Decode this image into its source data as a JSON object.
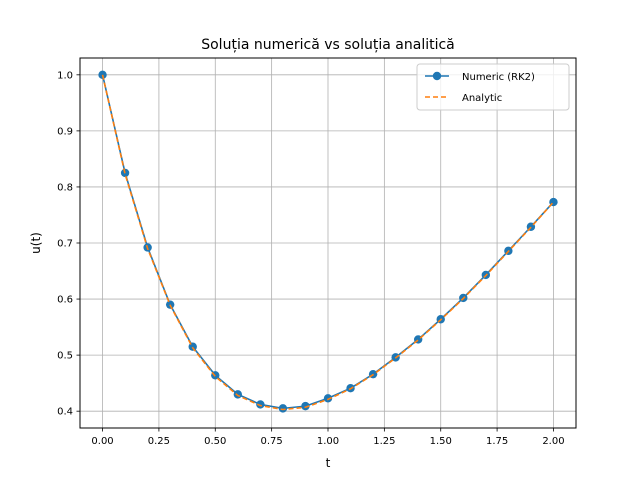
{
  "chart_data": {
    "type": "line",
    "title": "Soluția numerică vs soluția analitică",
    "xlabel": "t",
    "ylabel": "u(t)",
    "xlim": [
      -0.1,
      2.1
    ],
    "ylim": [
      0.37,
      1.03
    ],
    "xticks": [
      0.0,
      0.25,
      0.5,
      0.75,
      1.0,
      1.25,
      1.5,
      1.75,
      2.0
    ],
    "xtick_labels": [
      "0.00",
      "0.25",
      "0.50",
      "0.75",
      "1.00",
      "1.25",
      "1.50",
      "1.75",
      "2.00"
    ],
    "yticks": [
      0.4,
      0.5,
      0.6,
      0.7,
      0.8,
      0.9,
      1.0
    ],
    "ytick_labels": [
      "0.4",
      "0.5",
      "0.6",
      "0.7",
      "0.8",
      "0.9",
      "1.0"
    ],
    "grid": true,
    "legend_position": "top-right",
    "x": [
      0.0,
      0.1,
      0.2,
      0.3,
      0.4,
      0.5,
      0.6,
      0.7,
      0.8,
      0.9,
      1.0,
      1.1,
      1.2,
      1.3,
      1.4,
      1.5,
      1.6,
      1.7,
      1.8,
      1.9,
      2.0
    ],
    "series": [
      {
        "name": "Numeric (RK2)",
        "color": "#1f77b4",
        "style": "solid-markers",
        "values": [
          1.0,
          0.825,
          0.692,
          0.59,
          0.515,
          0.464,
          0.43,
          0.412,
          0.405,
          0.409,
          0.423,
          0.441,
          0.466,
          0.496,
          0.528,
          0.564,
          0.602,
          0.643,
          0.686,
          0.729,
          0.773
        ]
      },
      {
        "name": "Analytic",
        "color": "#ff7f0e",
        "style": "dashed",
        "values": [
          1.0,
          0.823,
          0.69,
          0.589,
          0.513,
          0.462,
          0.428,
          0.41,
          0.403,
          0.407,
          0.421,
          0.44,
          0.465,
          0.495,
          0.527,
          0.563,
          0.601,
          0.642,
          0.685,
          0.728,
          0.773
        ]
      }
    ]
  }
}
